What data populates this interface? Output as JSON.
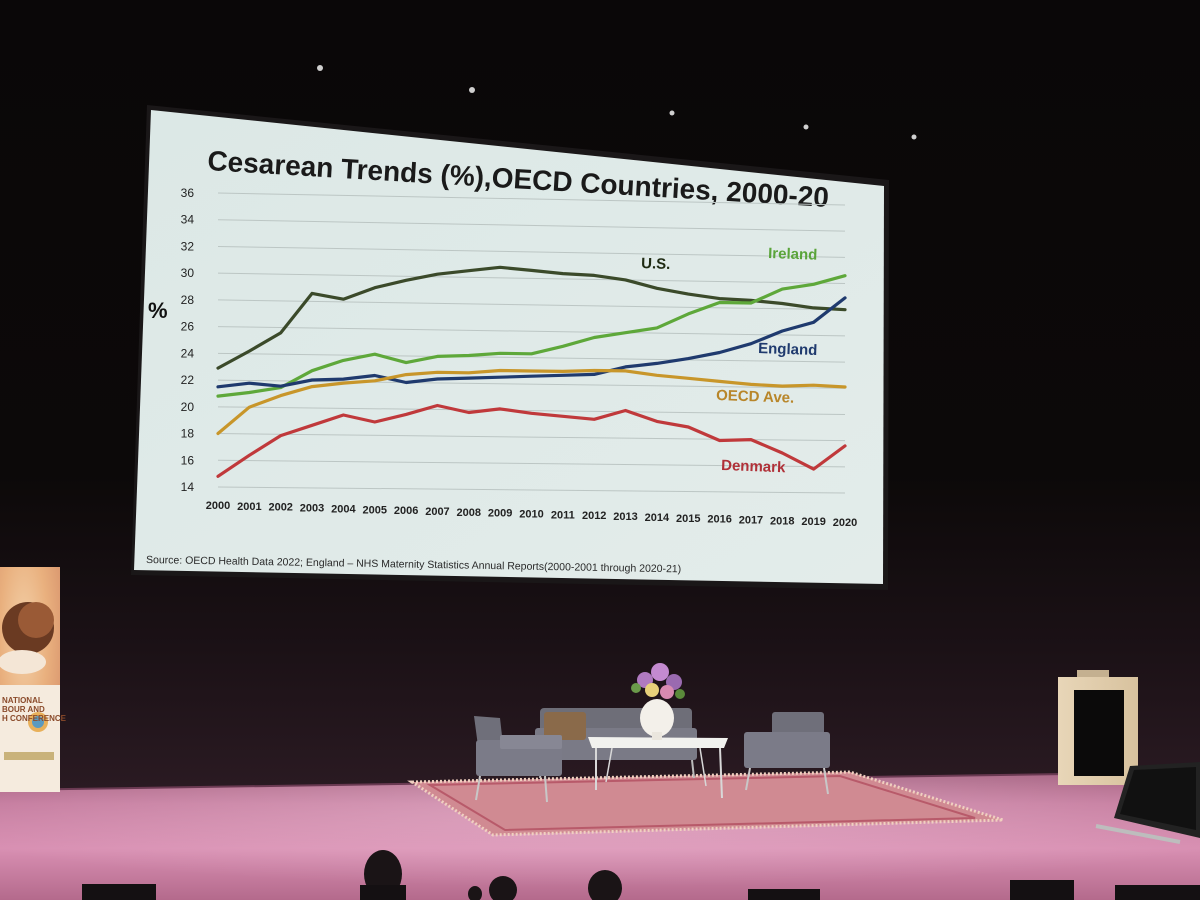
{
  "chart_data": {
    "type": "line",
    "title": "Cesarean Trends (%),OECD Countries, 2000-20",
    "xlabel": "",
    "ylabel": "%",
    "ylim": [
      14,
      36
    ],
    "yticks": [
      14,
      16,
      18,
      20,
      22,
      24,
      26,
      28,
      30,
      32,
      34,
      36
    ],
    "grid": true,
    "legend": "inline labels",
    "x": [
      "2000",
      "2001",
      "2002",
      "2003",
      "2004",
      "2005",
      "2006",
      "2007",
      "2008",
      "2009",
      "2010",
      "2011",
      "2012",
      "2013",
      "2014",
      "2015",
      "2016",
      "2017",
      "2018",
      "2019",
      "2020"
    ],
    "series": [
      {
        "name": "U.S.",
        "color": "#3b4a2a",
        "label_color": "#1e2a12",
        "values": [
          22.9,
          24.2,
          25.6,
          28.6,
          28.2,
          29.1,
          29.7,
          30.2,
          30.5,
          30.8,
          30.6,
          30.4,
          30.3,
          30.0,
          29.4,
          29.0,
          28.7,
          28.6,
          28.4,
          28.1,
          28.0
        ]
      },
      {
        "name": "Ireland",
        "color": "#5ea83a",
        "label_color": "#5aa43a",
        "values": [
          20.8,
          21.1,
          21.5,
          22.8,
          23.6,
          24.1,
          23.5,
          24.0,
          24.1,
          24.3,
          24.3,
          24.9,
          25.6,
          26.0,
          26.4,
          27.5,
          28.4,
          28.4,
          29.5,
          29.9,
          30.6
        ]
      },
      {
        "name": "England",
        "color": "#1f3a6e",
        "label_color": "#1f3a6e",
        "values": [
          21.5,
          21.8,
          21.6,
          22.1,
          22.2,
          22.5,
          22.0,
          22.3,
          22.4,
          22.5,
          22.6,
          22.7,
          22.8,
          23.4,
          23.7,
          24.1,
          24.6,
          25.3,
          26.3,
          27.0,
          28.9
        ]
      },
      {
        "name": "OECD Ave.",
        "color": "#c8962a",
        "label_color": "#b8862a",
        "values": [
          18.0,
          20.0,
          20.9,
          21.6,
          21.9,
          22.1,
          22.6,
          22.8,
          22.8,
          23.0,
          23.0,
          23.0,
          23.1,
          23.1,
          22.8,
          22.6,
          22.4,
          22.2,
          22.1,
          22.2,
          22.1
        ]
      },
      {
        "name": "Denmark",
        "color": "#c0393b",
        "label_color": "#b03038",
        "values": [
          14.8,
          16.4,
          17.9,
          18.7,
          19.5,
          19.0,
          19.6,
          20.3,
          19.8,
          20.1,
          19.8,
          19.6,
          19.4,
          20.1,
          19.3,
          18.9,
          17.9,
          18.0,
          17.0,
          15.8,
          17.6
        ]
      }
    ],
    "source": "Source: OECD Health Data 2022; England – NHS Maternity Statistics Annual Reports(2000-2001 through 2020-21)"
  },
  "banner": {
    "lines": [
      "NATIONAL",
      "BOUR AND",
      "H CONFERENCE"
    ]
  },
  "colors": {
    "screen_background": "#dde8e6",
    "title_color": "#1a1a1a",
    "stage_floor": "#d58ab0"
  }
}
